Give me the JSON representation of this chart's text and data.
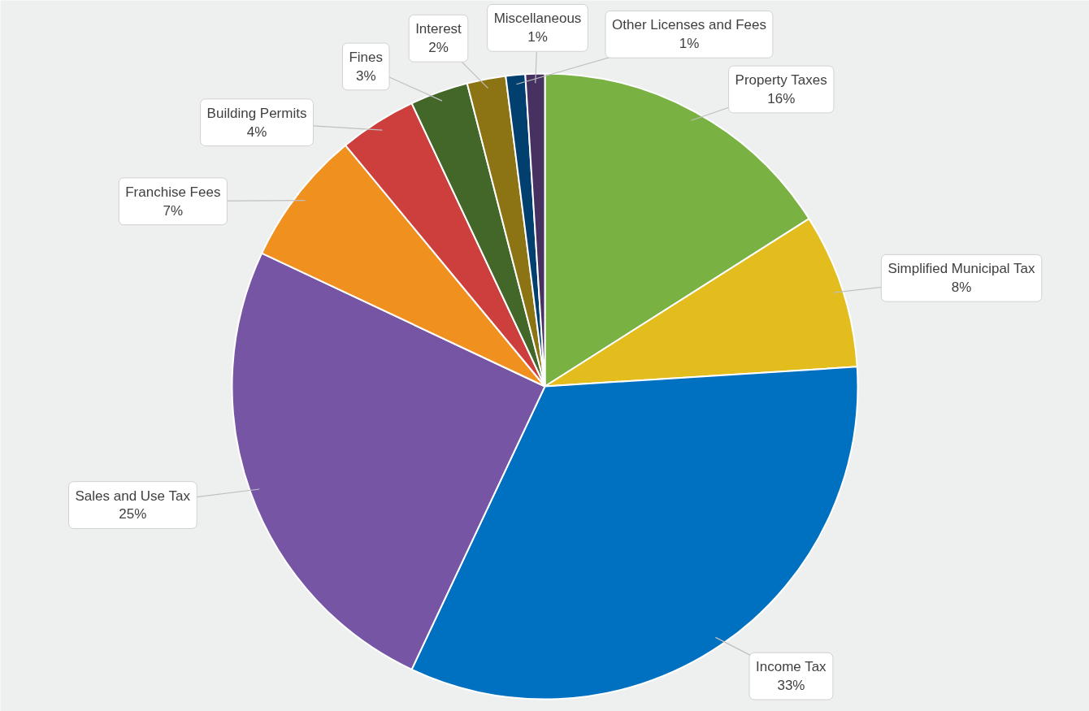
{
  "chart_data": {
    "type": "pie",
    "categories": [
      "Property Taxes",
      "Simplified Municipal Tax",
      "Income Tax",
      "Sales and Use Tax",
      "Franchise Fees",
      "Building Permits",
      "Fines",
      "Interest",
      "Other Licenses and Fees",
      "Miscellaneous"
    ],
    "values": [
      16,
      8,
      33,
      25,
      7,
      4,
      3,
      2,
      1,
      1
    ],
    "value_labels": [
      "16%",
      "8%",
      "33%",
      "25%",
      "7%",
      "4%",
      "3%",
      "2%",
      "1%",
      "1%"
    ],
    "colors": [
      "#79b142",
      "#e3bd1e",
      "#0070c0",
      "#7655a5",
      "#f0901f",
      "#cc3f3c",
      "#436729",
      "#8c7313",
      "#003f6e",
      "#473160"
    ]
  }
}
